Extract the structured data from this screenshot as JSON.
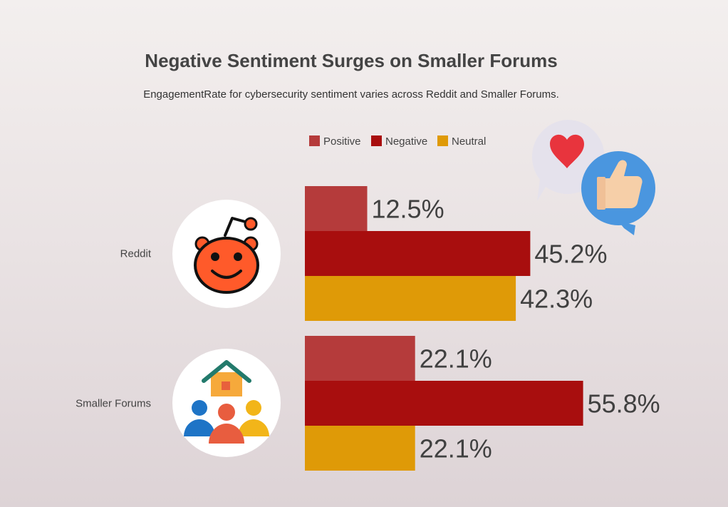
{
  "chart_data": {
    "type": "bar",
    "orientation": "horizontal",
    "title": "Negative Sentiment Surges on Smaller Forums",
    "subtitle": "EngagementRate for cybersecurity sentiment varies across Reddit and Smaller Forums.",
    "categories": [
      "Reddit",
      "Smaller Forums"
    ],
    "series": [
      {
        "name": "Positive",
        "color": "#b53b3b",
        "values": [
          12.5,
          22.1
        ],
        "labels": [
          "12.5%",
          "22.1%"
        ]
      },
      {
        "name": "Negative",
        "color": "#a80e0e",
        "values": [
          45.2,
          55.8
        ],
        "labels": [
          "45.2%",
          "55.8%"
        ]
      },
      {
        "name": "Neutral",
        "color": "#df9a07",
        "values": [
          42.3,
          22.1
        ],
        "labels": [
          "42.3%",
          "22.1%"
        ]
      }
    ],
    "xlim": [
      0,
      100
    ],
    "grid": false,
    "legend_position": "top",
    "icons": [
      "reddit-logo-icon",
      "community-forum-icon",
      "social-reactions-icon"
    ]
  }
}
